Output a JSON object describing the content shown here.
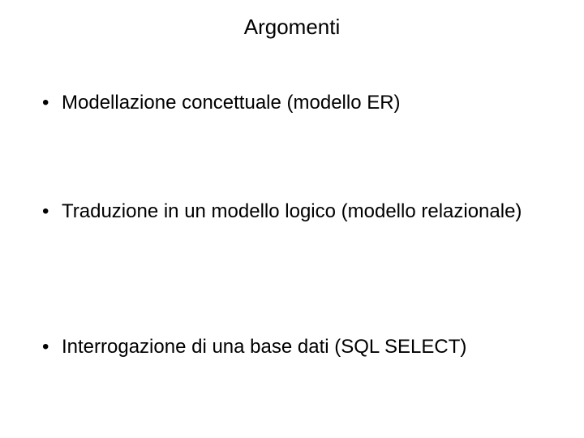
{
  "slide": {
    "title": "Argomenti",
    "bullets": [
      "Modellazione concettuale (modello ER)",
      "Traduzione in un modello logico (modello relazionale)",
      "Interrogazione di una base dati (SQL SELECT)"
    ],
    "title_fontsize": 26,
    "body_fontsize": 24,
    "text_color": "#000000",
    "background_color": "#ffffff",
    "bullet_char": "•"
  }
}
